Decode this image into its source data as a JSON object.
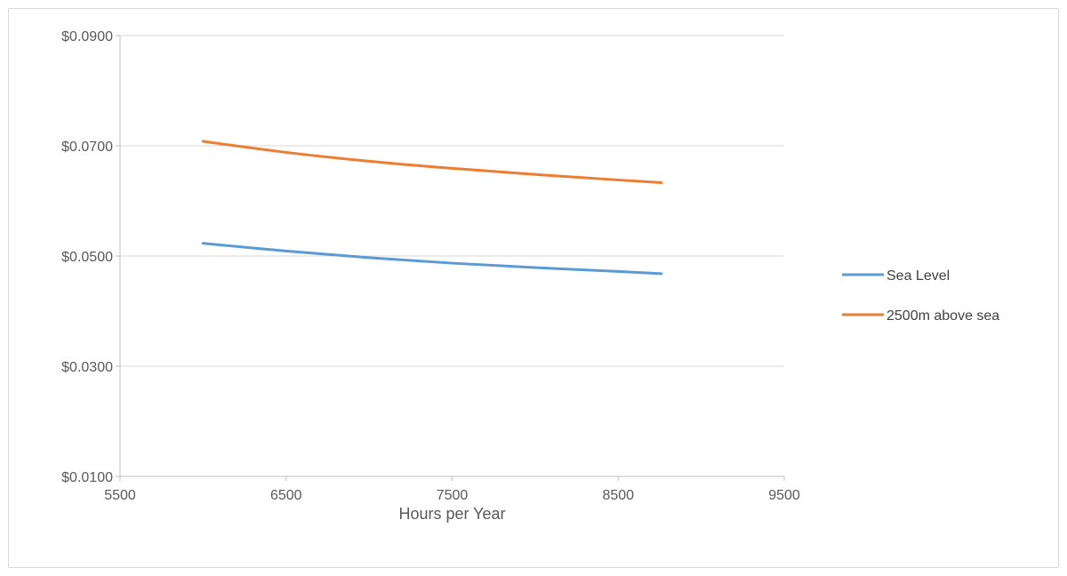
{
  "chart_data": {
    "type": "line",
    "title": "",
    "xlabel": "Hours per Year",
    "ylabel": "",
    "xlim": [
      5500,
      9500
    ],
    "ylim": [
      0.01,
      0.09
    ],
    "x_ticks": [
      5500,
      6500,
      7500,
      8500,
      9500
    ],
    "x_tick_labels": [
      "5500",
      "6500",
      "7500",
      "8500",
      "9500"
    ],
    "y_ticks": [
      0.01,
      0.03,
      0.05,
      0.07,
      0.09
    ],
    "y_tick_labels": [
      "$0.0100",
      "$0.0300",
      "$0.0500",
      "$0.0700",
      "$0.0900"
    ],
    "grid": true,
    "legend_position": "right",
    "series": [
      {
        "name": "Sea Level",
        "color": "#5b9bd5",
        "x": [
          6000,
          6500,
          7000,
          7500,
          8000,
          8500,
          8760
        ],
        "y": [
          0.0523,
          0.0509,
          0.0497,
          0.0487,
          0.0479,
          0.0472,
          0.0468
        ]
      },
      {
        "name": "2500m above sea",
        "color": "#ed7d31",
        "x": [
          6000,
          6500,
          7000,
          7500,
          8000,
          8500,
          8760
        ],
        "y": [
          0.0708,
          0.0688,
          0.0672,
          0.0659,
          0.0648,
          0.0638,
          0.0633
        ]
      }
    ]
  }
}
